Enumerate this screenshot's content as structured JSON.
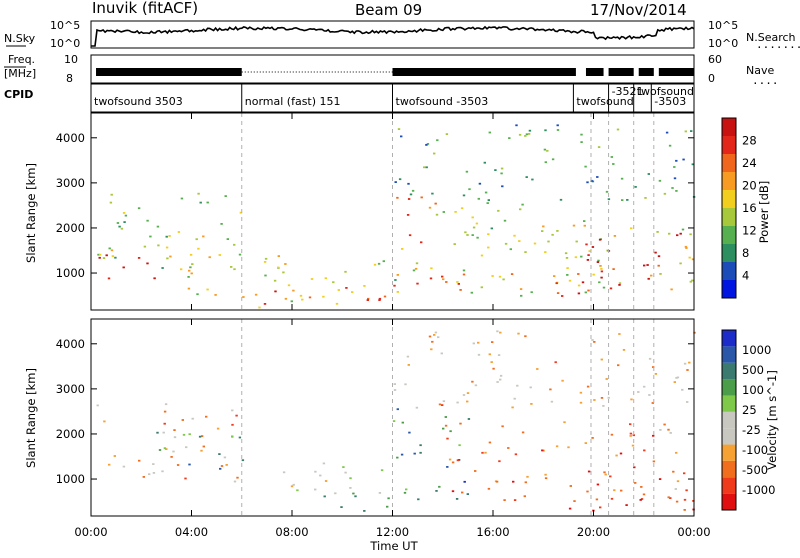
{
  "header": {
    "station": "Inuvik (fitACF)",
    "beam": "Beam 09",
    "date": "17/Nov/2014"
  },
  "nsky_panel": {
    "left_label": "N.Sky",
    "left_ticks": [
      "10^5",
      "10^0"
    ],
    "right_label": "N.Search",
    "right_ticks": [
      "10^5",
      "10^0"
    ],
    "legend_marker": "........"
  },
  "freq_panel": {
    "left_label_1": "Freq.",
    "left_label_2": "[MHz]",
    "left_ticks": [
      "10",
      "8"
    ],
    "right_label": "Nave",
    "right_ticks": [
      "60",
      "0"
    ],
    "legend_marker": "...."
  },
  "cpid_panel": {
    "label": "CPID",
    "segments": [
      {
        "text": "twofsound 3503",
        "start_h": 0.0,
        "end_h": 6.0
      },
      {
        "text": "normal (fast) 151",
        "start_h": 6.0,
        "end_h": 12.0
      },
      {
        "text": "twofsound -3503",
        "start_h": 12.0,
        "end_h": 19.2
      },
      {
        "text": "twofsound",
        "start_h": 19.2,
        "end_h": 20.6
      },
      {
        "text": "-3521",
        "start_h": 20.6,
        "end_h": 21.6
      },
      {
        "text": "twofsound",
        "start_h": 21.6,
        "end_h": 22.3
      },
      {
        "text": "-3503",
        "start_h": 22.3,
        "end_h": 24.0
      }
    ]
  },
  "chart_data": [
    {
      "type": "heatmap",
      "title": "",
      "xlabel": "Time UT",
      "ylabel": "Slant Range [km]",
      "xlim": [
        0,
        24
      ],
      "ylim": [
        180,
        4550
      ],
      "x_ticks": [
        "00:00",
        "04:00",
        "08:00",
        "12:00",
        "16:00",
        "20:00",
        "00:00"
      ],
      "y_ticks": [
        1000,
        2000,
        3000,
        4000
      ],
      "colorbar_label": "Power [dB]",
      "colorbar_ticks": [
        "28",
        "24",
        "20",
        "16",
        "12",
        "8",
        "4"
      ],
      "colorbar_colors": [
        "#0015e0",
        "#1c4cb8",
        "#2d8f60",
        "#56b050",
        "#a6c83a",
        "#f2cf1f",
        "#f79b22",
        "#f0661c",
        "#e2261a",
        "#c81212"
      ],
      "regions": [
        {
          "t": [
            0.2,
            6.0
          ],
          "r": [
            1100,
            2800
          ],
          "level": 0.45
        },
        {
          "t": [
            0.3,
            5.5
          ],
          "r": [
            1300,
            1650
          ],
          "level": 0.55
        },
        {
          "t": [
            0.1,
            3.0
          ],
          "r": [
            900,
            1500
          ],
          "level": 0.9
        },
        {
          "t": [
            3.0,
            11.8
          ],
          "r": [
            250,
            1400
          ],
          "level": 0.5
        },
        {
          "t": [
            5.5,
            11.8
          ],
          "r": [
            250,
            700
          ],
          "level": 0.85
        },
        {
          "t": [
            12.0,
            19.5
          ],
          "r": [
            500,
            2600
          ],
          "level": 0.45
        },
        {
          "t": [
            12.0,
            13.8
          ],
          "r": [
            1600,
            2700
          ],
          "level": 0.7
        },
        {
          "t": [
            12.0,
            19.5
          ],
          "r": [
            500,
            1100
          ],
          "level": 0.8
        },
        {
          "t": [
            19.5,
            24.0
          ],
          "r": [
            500,
            2200
          ],
          "level": 0.5
        },
        {
          "t": [
            19.5,
            23.8
          ],
          "r": [
            600,
            1900
          ],
          "level": 0.9
        },
        {
          "t": [
            12.0,
            24.0
          ],
          "r": [
            2600,
            4300
          ],
          "level": 0.3
        }
      ]
    },
    {
      "type": "heatmap",
      "title": "",
      "xlabel": "Time UT",
      "ylabel": "Slant Range [km]",
      "xlim": [
        0,
        24
      ],
      "ylim": [
        180,
        4550
      ],
      "x_ticks": [
        "00:00",
        "04:00",
        "08:00",
        "12:00",
        "16:00",
        "20:00",
        "00:00"
      ],
      "y_ticks": [
        1000,
        2000,
        3000,
        4000
      ],
      "colorbar_label": "Velocity [m s^-1]",
      "colorbar_ticks": [
        "1000",
        "500",
        "100",
        "25",
        "-25",
        "-100",
        "-500",
        "-1000"
      ],
      "colorbar_colors": [
        "#e01010",
        "#f03a1c",
        "#f26e1f",
        "#f6a133",
        "#c8c8c0",
        "#c8c8c0",
        "#7ec84a",
        "#4c9d4a",
        "#3b7a6e",
        "#2a57a8",
        "#1b2cc8"
      ],
      "regions": [
        {
          "t": [
            0.2,
            6.0
          ],
          "r": [
            1000,
            2700
          ],
          "level": 0.3
        },
        {
          "t": [
            2.5,
            6.0
          ],
          "r": [
            1200,
            2100
          ],
          "level": 0.72
        },
        {
          "t": [
            5.5,
            11.8
          ],
          "r": [
            700,
            1400
          ],
          "level": 0.5
        },
        {
          "t": [
            8.5,
            11.8
          ],
          "r": [
            250,
            800
          ],
          "level": 0.8
        },
        {
          "t": [
            12.0,
            15.0
          ],
          "r": [
            500,
            2600
          ],
          "level": 0.75
        },
        {
          "t": [
            14.0,
            24.0
          ],
          "r": [
            500,
            2300
          ],
          "level": 0.22
        },
        {
          "t": [
            19.0,
            24.0
          ],
          "r": [
            300,
            1200
          ],
          "level": 0.12
        },
        {
          "t": [
            12.0,
            24.0
          ],
          "r": [
            2600,
            4300
          ],
          "level": 0.35
        }
      ]
    }
  ]
}
